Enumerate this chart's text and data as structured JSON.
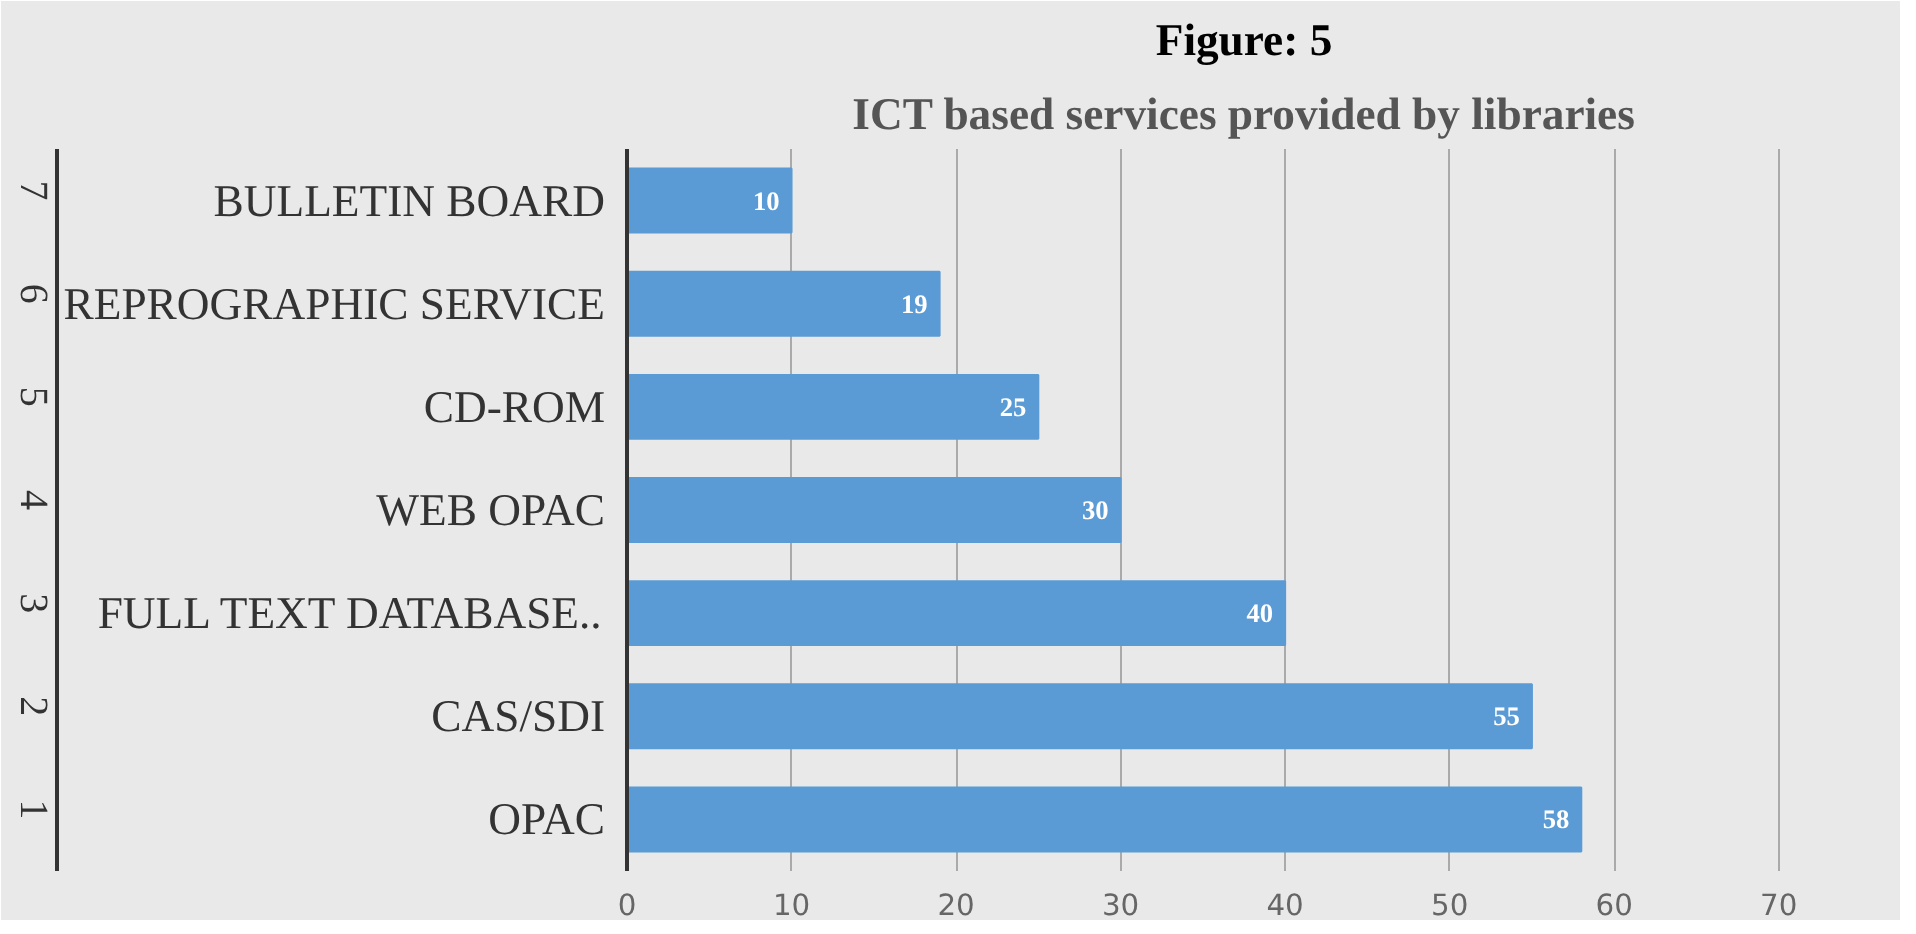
{
  "chart_data": {
    "type": "bar",
    "orientation": "horizontal",
    "title": "Figure: 5",
    "subtitle": "ICT based services provided by libraries",
    "categories": [
      "BULLETIN BOARD",
      "REPROGRAPHIC SERVICE",
      "CD-ROM",
      "WEB OPAC",
      "FULL TEXT DATABASE..",
      "CAS/SDI",
      "OPAC"
    ],
    "values": [
      10,
      19,
      25,
      30,
      40,
      55,
      58
    ],
    "color": "#5b9bd5",
    "annotations": [
      "7",
      "6",
      "5",
      "4",
      "3",
      "2",
      "1"
    ],
    "xlim": [
      0,
      75
    ],
    "xticks": [
      0,
      10,
      20,
      30,
      40,
      50,
      60,
      70
    ],
    "grid": "x",
    "data_labels": true
  }
}
